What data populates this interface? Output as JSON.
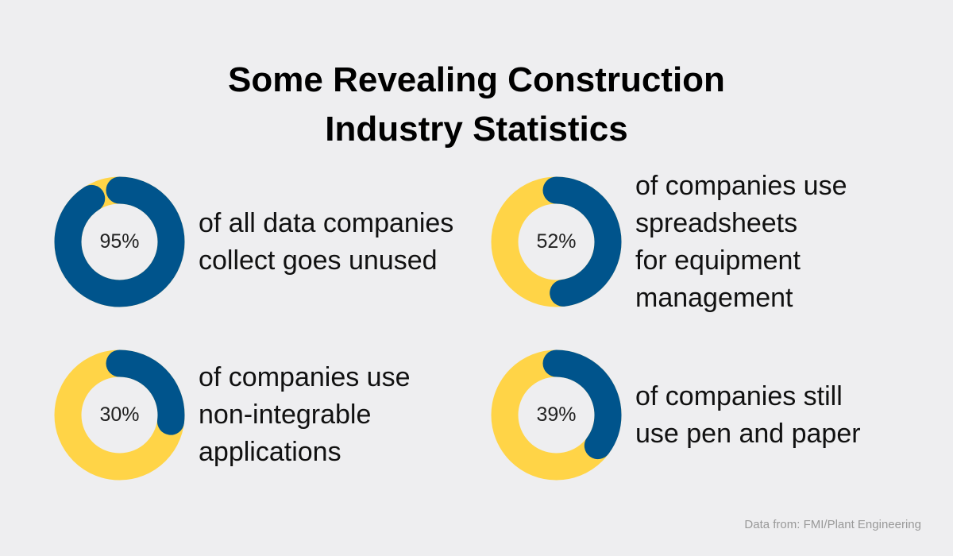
{
  "title": {
    "line1": "Some Revealing Construction",
    "line2": "Industry Statistics"
  },
  "colors": {
    "background": "#eeeef0",
    "filled": "#00548c",
    "remainder": "#ffd447",
    "hole": "#eeeef0"
  },
  "chart_data": [
    {
      "type": "pie",
      "value_percent": 95,
      "label": "95%",
      "description_lines": [
        "of all data companies",
        "collect goes unused"
      ]
    },
    {
      "type": "pie",
      "value_percent": 52,
      "label": "52%",
      "description_lines": [
        "of companies use",
        "spreadsheets",
        "for equipment",
        "management"
      ]
    },
    {
      "type": "pie",
      "value_percent": 30,
      "label": "30%",
      "description_lines": [
        "of companies use",
        "non-integrable",
        "applications"
      ]
    },
    {
      "type": "pie",
      "value_percent": 39,
      "label": "39%",
      "description_lines": [
        "of companies still",
        "use pen and paper"
      ]
    }
  ],
  "source": "Data from: FMI/Plant Engineering"
}
